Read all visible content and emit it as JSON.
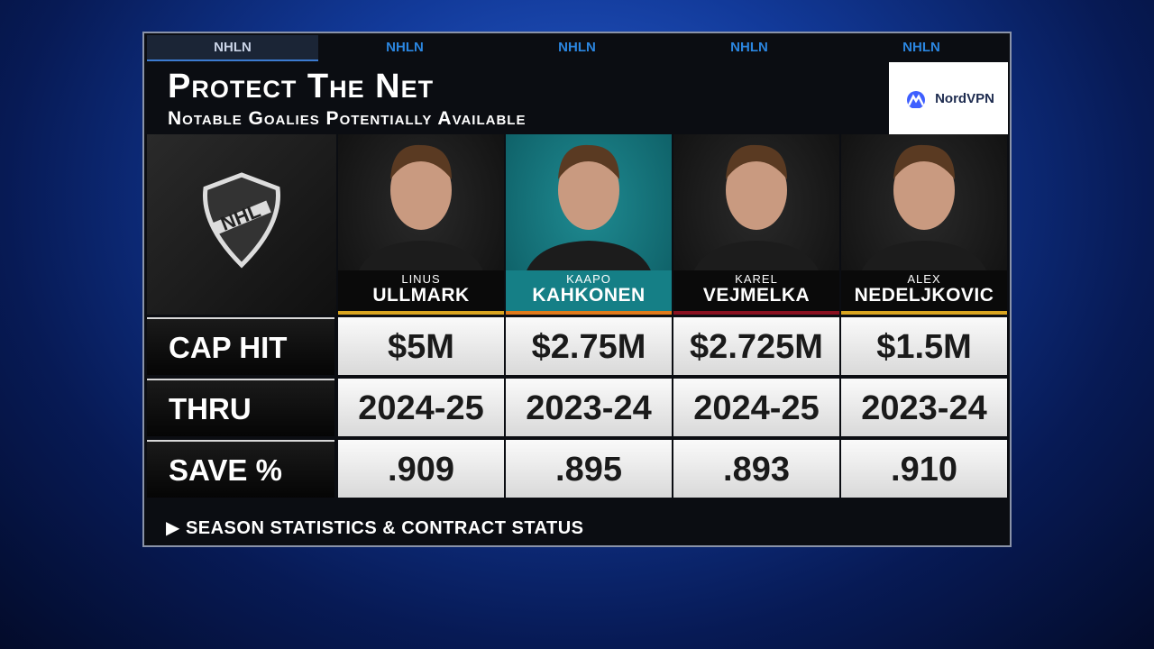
{
  "header": {
    "tabs": [
      "NHLN",
      "NHLN",
      "NHLN",
      "NHLN",
      "NHLN"
    ],
    "title": "Protect The Net",
    "subtitle": "Notable Goalies Potentially Available",
    "sponsor": "NordVPN"
  },
  "players": [
    {
      "first": "LINUS",
      "last": "ULLMARK"
    },
    {
      "first": "KAAPO",
      "last": "KAHKONEN"
    },
    {
      "first": "KAREL",
      "last": "VEJMELKA"
    },
    {
      "first": "ALEX",
      "last": "NEDELJKOVIC"
    }
  ],
  "table": {
    "rows": [
      {
        "label": "CAP HIT",
        "cells": [
          "$5M",
          "$2.75M",
          "$2.725M",
          "$1.5M"
        ]
      },
      {
        "label": "THRU",
        "cells": [
          "2024-25",
          "2023-24",
          "2024-25",
          "2023-24"
        ]
      },
      {
        "label": "SAVE %",
        "cells": [
          ".909",
          ".895",
          ".893",
          ".910"
        ]
      }
    ]
  },
  "footer": "SEASON STATISTICS & CONTRACT STATUS"
}
